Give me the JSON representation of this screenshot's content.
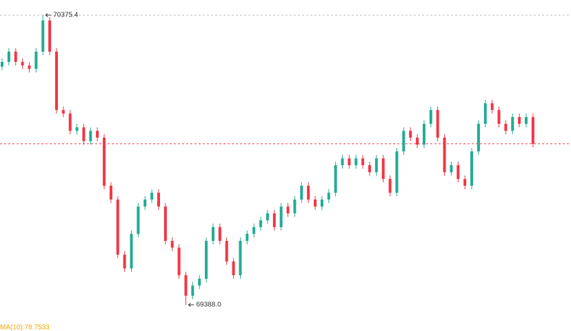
{
  "chart_data": {
    "type": "candlestick",
    "up_color": "#22ab94",
    "down_color": "#f23645",
    "ylim": [
      69388.0,
      70375.4
    ],
    "open": [
      70200,
      70216,
      70251,
      70216,
      70204,
      70192,
      70251,
      70357,
      70251,
      70052,
      70040,
      69981,
      69993,
      69946,
      69981,
      69958,
      69794,
      69747,
      69559,
      69512,
      69630,
      69723,
      69747,
      69770,
      69723,
      69606,
      69583,
      69489,
      69419,
      69454,
      69477,
      69606,
      69653,
      69606,
      69536,
      69489,
      69606,
      69630,
      69653,
      69676,
      69700,
      69653,
      69723,
      69700,
      69747,
      69794,
      69747,
      69723,
      69747,
      69770,
      69864,
      69887,
      69864,
      69887,
      69864,
      69840,
      69887,
      69817,
      69770,
      69911,
      69981,
      69958,
      69934,
      70005,
      70052,
      69958,
      69840,
      69864,
      69817,
      69794,
      69911,
      70005,
      70075,
      70052,
      70005,
      69981,
      70028,
      70005,
      70028
    ],
    "high": [
      70228,
      70263,
      70263,
      70228,
      70216,
      70263,
      70375.4,
      70369,
      70263,
      70064,
      70052,
      70005,
      70005,
      69993,
      69993,
      69970,
      69806,
      69759,
      69571,
      69642,
      69735,
      69759,
      69782,
      69782,
      69735,
      69618,
      69595,
      69501,
      69466,
      69489,
      69618,
      69665,
      69665,
      69618,
      69548,
      69618,
      69642,
      69665,
      69688,
      69712,
      69712,
      69735,
      69735,
      69759,
      69806,
      69806,
      69759,
      69759,
      69782,
      69876,
      69899,
      69899,
      69899,
      69899,
      69876,
      69899,
      69899,
      69829,
      69923,
      69993,
      69993,
      69970,
      70017,
      70064,
      70064,
      69970,
      69876,
      69876,
      69829,
      69923,
      70017,
      70087,
      70087,
      70064,
      70017,
      70040,
      70040,
      70040,
      70040
    ],
    "low": [
      70188,
      70204,
      70204,
      70192,
      70180,
      70180,
      70239,
      70239,
      70040,
      70028,
      69969,
      69969,
      69934,
      69934,
      69946,
      69782,
      69735,
      69547,
      69500,
      69500,
      69618,
      69711,
      69735,
      69711,
      69594,
      69571,
      69477,
      69388.0,
      69407,
      69442,
      69465,
      69594,
      69594,
      69524,
      69477,
      69477,
      69594,
      69618,
      69641,
      69664,
      69641,
      69641,
      69688,
      69688,
      69735,
      69735,
      69711,
      69711,
      69735,
      69758,
      69852,
      69852,
      69852,
      69852,
      69828,
      69828,
      69805,
      69758,
      69758,
      69899,
      69946,
      69922,
      69922,
      69993,
      69946,
      69828,
      69828,
      69805,
      69782,
      69782,
      69899,
      69993,
      70040,
      69993,
      69969,
      69969,
      69993,
      69993,
      69925
    ],
    "close": [
      70216,
      70251,
      70216,
      70204,
      70192,
      70251,
      70357,
      70251,
      70052,
      70040,
      69981,
      69993,
      69946,
      69981,
      69958,
      69794,
      69747,
      69559,
      69512,
      69630,
      69723,
      69747,
      69770,
      69723,
      69606,
      69583,
      69489,
      69419,
      69454,
      69477,
      69606,
      69653,
      69606,
      69536,
      69489,
      69606,
      69630,
      69653,
      69676,
      69700,
      69653,
      69723,
      69700,
      69747,
      69794,
      69747,
      69723,
      69747,
      69770,
      69864,
      69887,
      69864,
      69887,
      69864,
      69840,
      69887,
      69817,
      69770,
      69911,
      69981,
      69958,
      69934,
      70005,
      70052,
      69958,
      69840,
      69864,
      69817,
      69794,
      69911,
      70005,
      70075,
      70052,
      70005,
      69981,
      70028,
      70005,
      70028,
      69937
    ],
    "annotations": [
      {
        "value": 70375.4,
        "label": "70375.4"
      },
      {
        "value": 69388.0,
        "label": "69388.0"
      }
    ],
    "indicator_label": "MA(10):78.7533",
    "indicator_color": "#f0a500"
  }
}
